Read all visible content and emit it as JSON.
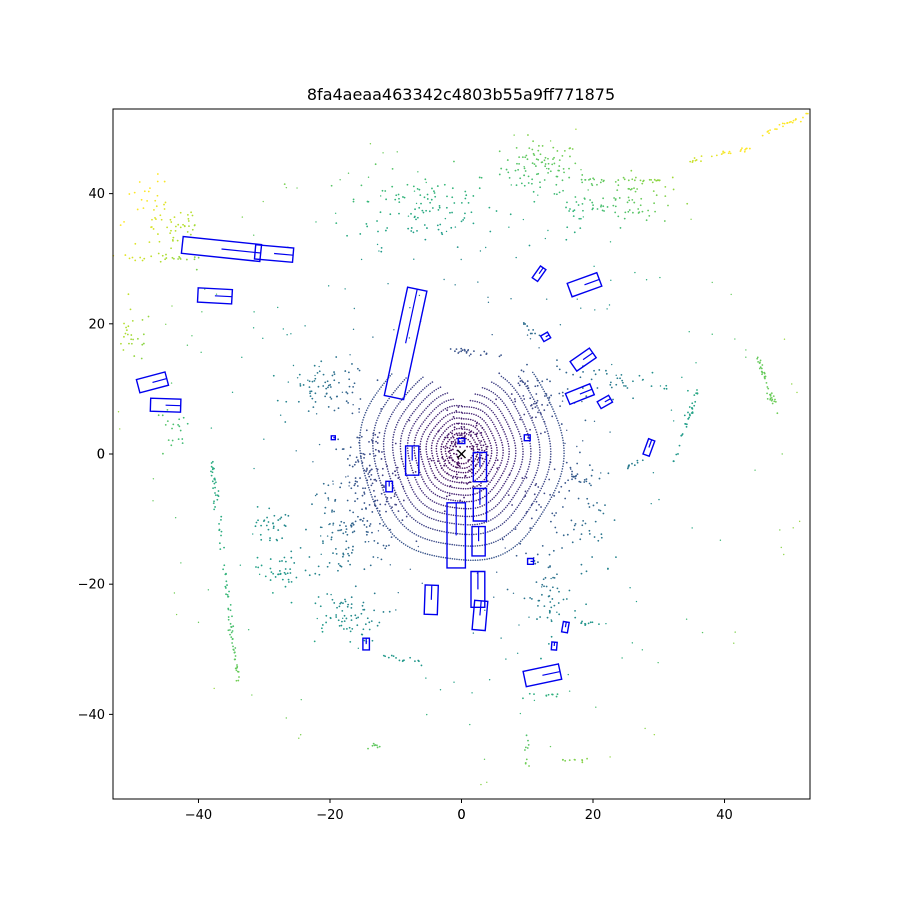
{
  "chart_data": {
    "type": "scatter",
    "title": "8fa4aeaa463342c4803b55a9ff771875",
    "xlabel": "",
    "ylabel": "",
    "xlim": [
      -53,
      53
    ],
    "ylim": [
      -53,
      53
    ],
    "xticks": [
      -40,
      -20,
      0,
      20,
      40
    ],
    "yticks": [
      -40,
      -20,
      0,
      20,
      40
    ],
    "grid": false,
    "colormap": "viridis",
    "box_color": "#0000ee",
    "ego_marker": {
      "x": 0,
      "y": 0,
      "symbol": "x"
    },
    "rings": [
      {
        "r": 2.0,
        "lo": 0,
        "hi": 360
      },
      {
        "r": 2.7,
        "lo": 0,
        "hi": 360
      },
      {
        "r": 3.4,
        "lo": 0,
        "hi": 360
      },
      {
        "r": 4.2,
        "lo": 0,
        "hi": 360
      },
      {
        "r": 5.0,
        "lo": 0,
        "hi": 360
      },
      {
        "r": 5.9,
        "lo": 0,
        "hi": 360
      },
      {
        "r": 6.9,
        "lo": 0,
        "hi": 360
      },
      {
        "r": 7.9,
        "lo": 10,
        "hi": 350
      },
      {
        "r": 9.0,
        "lo": 15,
        "hi": 345
      },
      {
        "r": 10.2,
        "lo": 20,
        "hi": 340
      },
      {
        "r": 11.5,
        "lo": 25,
        "hi": 335
      },
      {
        "r": 13.0,
        "lo": 30,
        "hi": 330
      },
      {
        "r": 14.8,
        "lo": 40,
        "hi": 320
      },
      {
        "r": 17.0,
        "lo": 45,
        "hi": 315
      }
    ],
    "boxes": [
      {
        "x": -36.5,
        "y": 31.5,
        "l": 12,
        "w": 2.6,
        "angle": -6
      },
      {
        "x": -28.5,
        "y": 30.8,
        "l": 5.8,
        "w": 2.2,
        "angle": -5
      },
      {
        "x": -37.5,
        "y": 24.3,
        "l": 5.2,
        "w": 2.2,
        "angle": -3
      },
      {
        "x": -47.0,
        "y": 11.0,
        "l": 4.5,
        "w": 2.1,
        "angle": 15
      },
      {
        "x": -45.0,
        "y": 7.5,
        "l": 4.6,
        "w": 2.0,
        "angle": -2
      },
      {
        "x": -8.5,
        "y": 17.0,
        "l": 17.0,
        "w": 3.0,
        "angle": 78
      },
      {
        "x": -7.5,
        "y": -1.0,
        "l": 4.5,
        "w": 2.0,
        "angle": 90
      },
      {
        "x": -0.8,
        "y": -12.5,
        "l": 10.0,
        "w": 2.8,
        "angle": 90
      },
      {
        "x": 2.8,
        "y": -2.0,
        "l": 4.5,
        "w": 2.0,
        "angle": 90
      },
      {
        "x": 2.8,
        "y": -7.8,
        "l": 5.0,
        "w": 2.0,
        "angle": 90
      },
      {
        "x": 2.6,
        "y": -13.4,
        "l": 4.5,
        "w": 2.0,
        "angle": 90
      },
      {
        "x": 2.5,
        "y": -20.8,
        "l": 5.5,
        "w": 2.1,
        "angle": 90
      },
      {
        "x": 2.8,
        "y": -24.8,
        "l": 4.5,
        "w": 2.0,
        "angle": 85
      },
      {
        "x": -4.6,
        "y": -22.4,
        "l": 4.5,
        "w": 2.0,
        "angle": 88
      },
      {
        "x": 12.3,
        "y": -34.0,
        "l": 5.5,
        "w": 2.4,
        "angle": 12
      },
      {
        "x": 18.7,
        "y": 26.0,
        "l": 4.8,
        "w": 2.2,
        "angle": 20
      },
      {
        "x": 18.5,
        "y": 14.5,
        "l": 3.6,
        "w": 1.8,
        "angle": 35
      },
      {
        "x": 18.0,
        "y": 9.2,
        "l": 4.0,
        "w": 1.8,
        "angle": 22
      },
      {
        "x": 21.8,
        "y": 8.0,
        "l": 2.0,
        "w": 1.2,
        "angle": 30
      },
      {
        "x": 11.8,
        "y": 27.7,
        "l": 2.2,
        "w": 1.0,
        "angle": 55
      },
      {
        "x": 12.8,
        "y": 18.0,
        "l": 1.2,
        "w": 1.0,
        "angle": 30
      },
      {
        "x": 28.5,
        "y": 1.0,
        "l": 2.5,
        "w": 1.0,
        "angle": 70
      },
      {
        "x": 15.8,
        "y": -26.6,
        "l": 1.6,
        "w": 0.9,
        "angle": 80
      },
      {
        "x": 14.1,
        "y": -29.5,
        "l": 1.2,
        "w": 0.8,
        "angle": 85
      },
      {
        "x": -14.5,
        "y": -29.2,
        "l": 1.8,
        "w": 1.0,
        "angle": 90
      },
      {
        "x": -11.0,
        "y": -5.0,
        "l": 1.6,
        "w": 1.0,
        "angle": 90
      },
      {
        "x": 10.5,
        "y": -16.5,
        "l": 0.9,
        "w": 0.9,
        "angle": 0
      },
      {
        "x": 10.0,
        "y": 2.5,
        "l": 0.9,
        "w": 0.9,
        "angle": 0
      },
      {
        "x": -19.5,
        "y": 2.5,
        "l": 0.6,
        "w": 0.6,
        "angle": 0
      },
      {
        "x": 0.0,
        "y": 2.0,
        "l": 1.0,
        "w": 0.8,
        "angle": 0
      }
    ],
    "clusters": [
      {
        "cx": 12,
        "cy": 44,
        "sx": 3,
        "sy": 2,
        "n": 90
      },
      {
        "cx": -6,
        "cy": 38,
        "sx": 6,
        "sy": 3,
        "n": 110
      },
      {
        "cx": 26,
        "cy": 39,
        "sx": 3,
        "sy": 2,
        "n": 60
      },
      {
        "cx": 18,
        "cy": 38,
        "sx": 2,
        "sy": 1.5,
        "n": 30
      },
      {
        "cx": -47,
        "cy": 36,
        "sx": 3,
        "sy": 3,
        "n": 40
      },
      {
        "cx": -43,
        "cy": 35,
        "sx": 2,
        "sy": 2,
        "n": 30
      },
      {
        "cx": -50,
        "cy": 18,
        "sx": 1.5,
        "sy": 2,
        "n": 25
      },
      {
        "cx": -44,
        "cy": 3,
        "sx": 1.5,
        "sy": 2,
        "n": 20
      },
      {
        "cx": -20,
        "cy": 10,
        "sx": 3,
        "sy": 2,
        "n": 70
      },
      {
        "cx": -14,
        "cy": -5,
        "sx": 3,
        "sy": 5,
        "n": 160
      },
      {
        "cx": -18,
        "cy": -12,
        "sx": 3,
        "sy": 4,
        "n": 80
      },
      {
        "cx": -18,
        "cy": -25,
        "sx": 3,
        "sy": 2,
        "n": 70
      },
      {
        "cx": -29,
        "cy": -11,
        "sx": 1.2,
        "sy": 1.5,
        "n": 30
      },
      {
        "cx": -28,
        "cy": -18,
        "sx": 1.5,
        "sy": 1.5,
        "n": 35
      },
      {
        "cx": 12,
        "cy": 8,
        "sx": 3,
        "sy": 3,
        "n": 60
      },
      {
        "cx": 13,
        "cy": -8,
        "sx": 3,
        "sy": 4,
        "n": 60
      },
      {
        "cx": 13,
        "cy": -22,
        "sx": 2,
        "sy": 3,
        "n": 50
      },
      {
        "cx": 20,
        "cy": -10,
        "sx": 2,
        "sy": 5,
        "n": 40
      },
      {
        "cx": 24,
        "cy": 11,
        "sx": 4,
        "sy": 1.2,
        "n": 40
      },
      {
        "cx": 0,
        "cy": 0,
        "sx": 2,
        "sy": 3,
        "n": 120
      }
    ],
    "line_segments": [
      {
        "x1": -38,
        "y1": -1,
        "x2": -34,
        "y2": -35,
        "n": 90
      },
      {
        "x1": -40,
        "y1": 30,
        "x2": -51,
        "y2": 30,
        "n": 20
      },
      {
        "x1": -2,
        "y1": 16,
        "x2": 6,
        "y2": 15,
        "n": 20
      },
      {
        "x1": 9,
        "y1": 20,
        "x2": 12,
        "y2": 18,
        "n": 10
      },
      {
        "x1": 36,
        "y1": 10,
        "x2": 32,
        "y2": -2,
        "n": 35
      },
      {
        "x1": 48,
        "y1": 6,
        "x2": 45,
        "y2": 15,
        "n": 40
      },
      {
        "x1": 30,
        "y1": 42,
        "x2": 18,
        "y2": 42,
        "n": 30
      },
      {
        "x1": 44,
        "y1": 47,
        "x2": 35,
        "y2": 45,
        "n": 25
      },
      {
        "x1": 53,
        "y1": 52,
        "x2": 45,
        "y2": 49,
        "n": 25
      },
      {
        "x1": 18,
        "y1": -26,
        "x2": 21,
        "y2": -26,
        "n": 10
      },
      {
        "x1": 15,
        "y1": -47,
        "x2": 19,
        "y2": -47,
        "n": 10
      },
      {
        "x1": -12,
        "y1": -31,
        "x2": -6,
        "y2": -32,
        "n": 15
      },
      {
        "x1": -14,
        "y1": -45,
        "x2": -12,
        "y2": -45,
        "n": 8
      },
      {
        "x1": 16,
        "y1": -3,
        "x2": 20,
        "y2": -5,
        "n": 15
      },
      {
        "x1": 25,
        "y1": -2,
        "x2": 28,
        "y2": -1,
        "n": 10
      },
      {
        "x1": 9,
        "y1": -37,
        "x2": 15,
        "y2": -37,
        "n": 10
      },
      {
        "x1": 10,
        "y1": -43,
        "x2": 10,
        "y2": -48,
        "n": 10
      }
    ]
  }
}
